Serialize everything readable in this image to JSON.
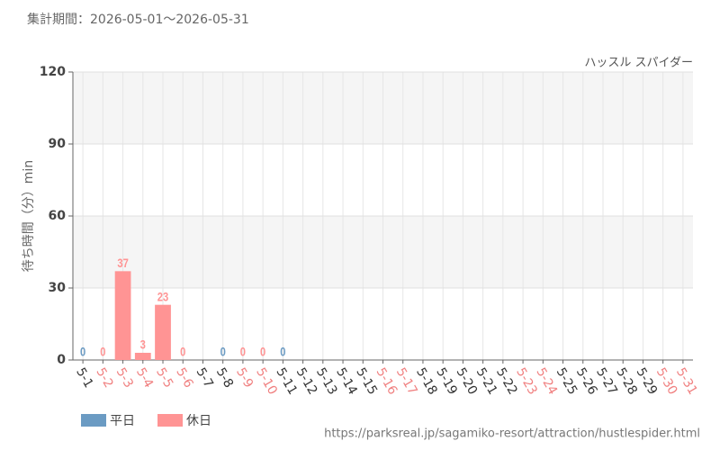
{
  "chart_data": {
    "type": "bar",
    "subtitle": "集計期間：2026-05-01～2026-05-31",
    "chart_label": "ハッスル スパイダー",
    "y_label": "待ち時間（分）min",
    "footer": "https://parksreal.jp/sagamiko-resort/attraction/hustlespider.html",
    "categories": [
      "5-1",
      "5-2",
      "5-3",
      "5-4",
      "5-5",
      "5-6",
      "5-7",
      "5-8",
      "5-9",
      "5-10",
      "5-11",
      "5-12",
      "5-13",
      "5-14",
      "5-15",
      "5-16",
      "5-17",
      "5-18",
      "5-19",
      "5-20",
      "5-21",
      "5-22",
      "5-23",
      "5-24",
      "5-25",
      "5-26",
      "5-27",
      "5-28",
      "5-29",
      "5-30",
      "5-31"
    ],
    "category_colors": [
      "#333333",
      "#f08080",
      "#f08080",
      "#f08080",
      "#f08080",
      "#f08080",
      "#333333",
      "#333333",
      "#f08080",
      "#f08080",
      "#333333",
      "#333333",
      "#333333",
      "#333333",
      "#333333",
      "#f08080",
      "#f08080",
      "#333333",
      "#333333",
      "#333333",
      "#333333",
      "#333333",
      "#f08080",
      "#f08080",
      "#333333",
      "#333333",
      "#333333",
      "#333333",
      "#333333",
      "#f08080",
      "#f08080"
    ],
    "series": [
      {
        "name": "平日",
        "color": "#6b9bc3",
        "values": [
          0,
          null,
          null,
          null,
          null,
          null,
          null,
          0,
          null,
          null,
          0,
          null,
          null,
          null,
          null,
          null,
          null,
          null,
          null,
          null,
          null,
          null,
          null,
          null,
          null,
          null,
          null,
          null,
          null,
          null,
          null
        ]
      },
      {
        "name": "休日",
        "color": "#ff9494",
        "values": [
          null,
          0,
          37,
          3,
          23,
          0,
          null,
          null,
          0,
          0,
          null,
          null,
          null,
          null,
          null,
          null,
          null,
          null,
          null,
          null,
          null,
          null,
          null,
          null,
          null,
          null,
          null,
          null,
          null,
          null,
          null
        ]
      }
    ],
    "ylim": [
      0,
      120
    ],
    "yticks": [
      0,
      30,
      60,
      90,
      120
    ],
    "grid": true
  }
}
